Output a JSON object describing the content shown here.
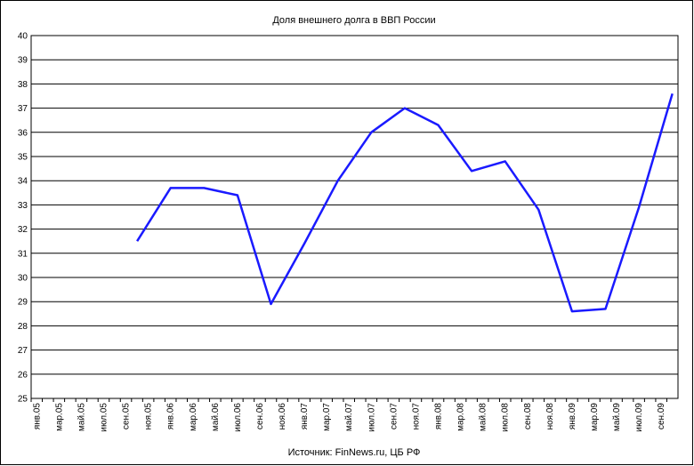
{
  "chart_data": {
    "type": "line",
    "title": "Доля внешнего долга в ВВП России",
    "source": "Источник: FinNews.ru, ЦБ РФ",
    "categories": [
      "янв.05",
      null,
      "мар.05",
      null,
      "май.05",
      null,
      "июл.05",
      null,
      "сен.05",
      null,
      "ноя.05",
      null,
      "янв.06",
      null,
      "мар.06",
      null,
      "май.06",
      null,
      "июл.06",
      null,
      "сен.06",
      null,
      "ноя.06",
      null,
      "янв.07",
      null,
      "мар.07",
      null,
      "май.07",
      null,
      "июл.07",
      null,
      "сен.07",
      null,
      "ноя.07",
      null,
      "янв.08",
      null,
      "мар.08",
      null,
      "май.08",
      null,
      "июл.08",
      null,
      "сен.08",
      null,
      "ноя.08",
      null,
      "янв.09",
      null,
      "мар.09",
      null,
      "май.09",
      null,
      "июл.09",
      null,
      "сен.09",
      null
    ],
    "series": [
      {
        "name": "Доля внешнего долга в ВВП",
        "color": "#1a1aff",
        "values": [
          null,
          null,
          null,
          null,
          null,
          null,
          null,
          null,
          null,
          31.5,
          null,
          null,
          33.7,
          null,
          null,
          33.7,
          null,
          null,
          33.4,
          null,
          null,
          28.9,
          null,
          null,
          31.4,
          null,
          null,
          34.0,
          null,
          null,
          36.0,
          null,
          null,
          37.0,
          null,
          null,
          36.3,
          null,
          null,
          34.4,
          null,
          null,
          34.8,
          null,
          null,
          32.8,
          null,
          null,
          28.6,
          null,
          null,
          28.7,
          null,
          null,
          32.9,
          null,
          null,
          37.6
        ]
      }
    ],
    "ylim": [
      25,
      40
    ],
    "yticks": [
      25,
      26,
      27,
      28,
      29,
      30,
      31,
      32,
      33,
      34,
      35,
      36,
      37,
      38,
      39,
      40
    ],
    "grid": true
  }
}
